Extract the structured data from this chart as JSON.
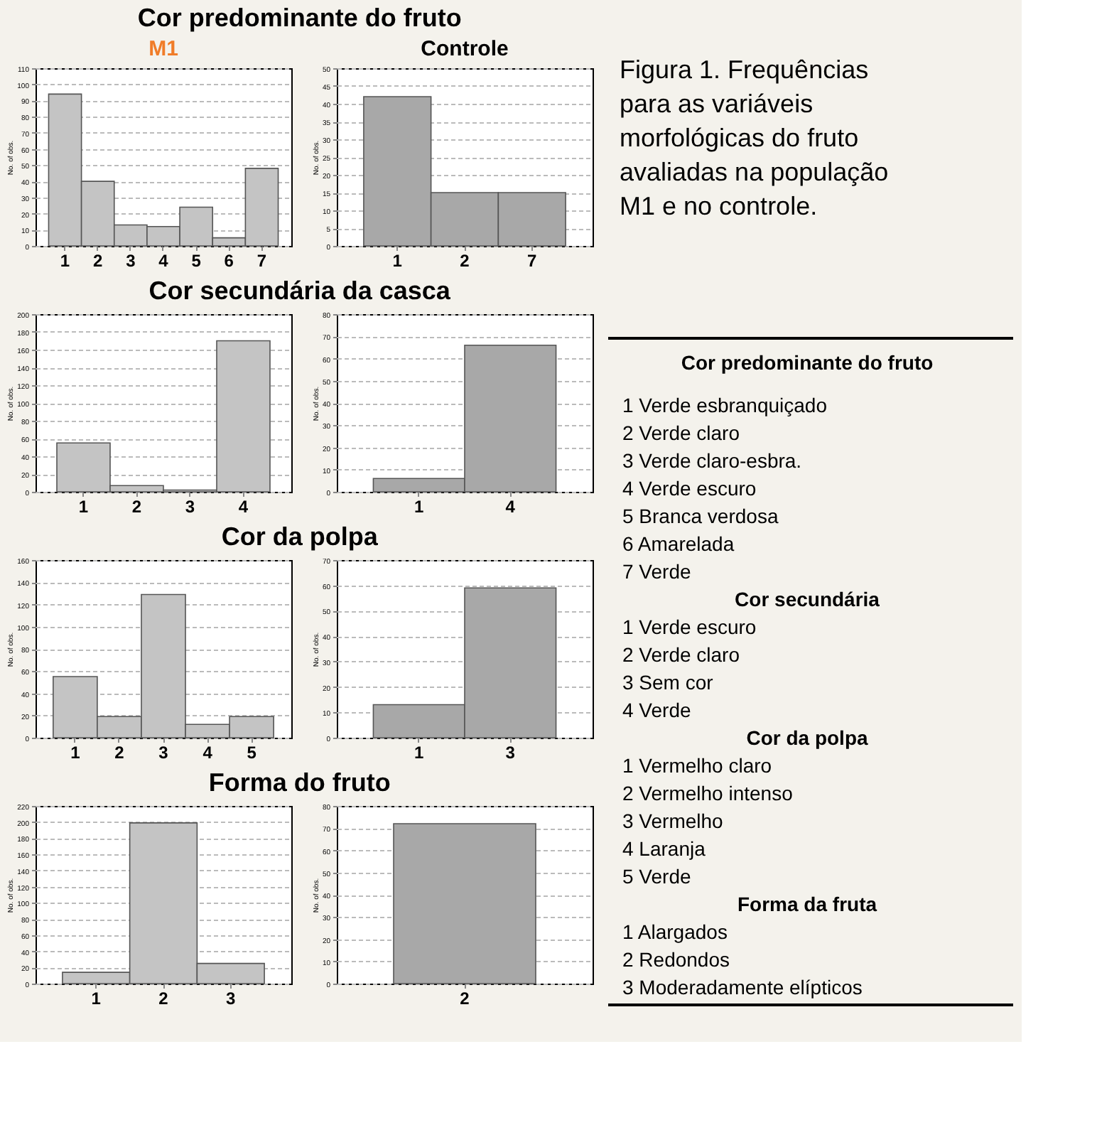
{
  "chart_data": [
    {
      "type": "bar",
      "title": "Cor predominante do fruto",
      "subtitle": "M1",
      "ylabel": "No. of obs.",
      "categories": [
        "1",
        "2",
        "3",
        "4",
        "5",
        "6",
        "7"
      ],
      "values": [
        94,
        40,
        13,
        12,
        24,
        5,
        48
      ],
      "color": "#c4c4c4",
      "ylim": [
        0,
        110
      ],
      "yticks": [
        0,
        10,
        20,
        30,
        40,
        50,
        60,
        70,
        80,
        90,
        100,
        110
      ],
      "grid": "y"
    },
    {
      "type": "bar",
      "subtitle": "Controle",
      "ylabel": "No. of obs.",
      "categories": [
        "1",
        "2",
        "7"
      ],
      "values": [
        42,
        15,
        15
      ],
      "color": "#a8a8a8",
      "ylim": [
        0,
        50
      ],
      "yticks": [
        0,
        5,
        10,
        15,
        20,
        25,
        30,
        35,
        40,
        45,
        50
      ],
      "grid": "y"
    },
    {
      "type": "bar",
      "title": "Cor secundária da casca",
      "ylabel": "No. of obs.",
      "categories": [
        "1",
        "2",
        "3",
        "4"
      ],
      "values": [
        55,
        7,
        2,
        170
      ],
      "color": "#c4c4c4",
      "ylim": [
        0,
        200
      ],
      "yticks": [
        0,
        20,
        40,
        60,
        80,
        100,
        120,
        140,
        160,
        180,
        200
      ],
      "grid": "y"
    },
    {
      "type": "bar",
      "ylabel": "No. of obs.",
      "categories": [
        "1",
        "4"
      ],
      "values": [
        6,
        66
      ],
      "color": "#a8a8a8",
      "ylim": [
        0,
        80
      ],
      "yticks": [
        0,
        10,
        20,
        30,
        40,
        50,
        60,
        70,
        80
      ],
      "grid": "y"
    },
    {
      "type": "bar",
      "title": "Cor da polpa",
      "ylabel": "No. of obs.",
      "categories": [
        "1",
        "2",
        "3",
        "4",
        "5"
      ],
      "values": [
        55,
        19,
        129,
        12,
        19
      ],
      "color": "#c4c4c4",
      "ylim": [
        0,
        160
      ],
      "yticks": [
        0,
        20,
        40,
        60,
        80,
        100,
        120,
        140,
        160
      ],
      "grid": "y"
    },
    {
      "type": "bar",
      "ylabel": "No. of obs.",
      "categories": [
        "1",
        "3"
      ],
      "values": [
        13,
        59
      ],
      "color": "#a8a8a8",
      "ylim": [
        0,
        70
      ],
      "yticks": [
        0,
        10,
        20,
        30,
        40,
        50,
        60,
        70
      ],
      "grid": "y"
    },
    {
      "type": "bar",
      "title": "Forma do fruto",
      "ylabel": "No. of obs.",
      "categories": [
        "1",
        "2",
        "3"
      ],
      "values": [
        14,
        199,
        25
      ],
      "color": "#c4c4c4",
      "ylim": [
        0,
        220
      ],
      "yticks": [
        0,
        20,
        40,
        60,
        80,
        100,
        120,
        140,
        160,
        180,
        200,
        220
      ],
      "grid": "y"
    },
    {
      "type": "bar",
      "ylabel": "No. of obs.",
      "categories": [
        "2"
      ],
      "values": [
        72
      ],
      "color": "#a8a8a8",
      "ylim": [
        0,
        80
      ],
      "yticks": [
        0,
        10,
        20,
        30,
        40,
        50,
        60,
        70,
        80
      ],
      "grid": "y"
    },
    {
      "type": "other",
      "title": "Figura 1. Frequências para as variáveis morfológicas do fruto avaliadas na população M1 e no controle.",
      "annotations": [
        "Cor predominante do fruto",
        "1 Verde esbranquiçado",
        "2 Verde claro",
        "3 Verde claro-esbra.",
        "4 Verde escuro",
        "5 Branca verdosa",
        "6 Amarelada",
        "7 Verde",
        "Cor secundária",
        "1 Verde escuro",
        "2 Verde claro",
        "3 Sem cor",
        "4 Verde",
        "Cor da polpa",
        "1 Vermelho claro",
        "2 Vermelho intenso",
        "3 Vermelho",
        "4 Laranja",
        "5 Verde",
        "Forma da fruta",
        "1 Alargados",
        "2 Redondos",
        "3 Moderadamente elípticos"
      ]
    }
  ]
}
